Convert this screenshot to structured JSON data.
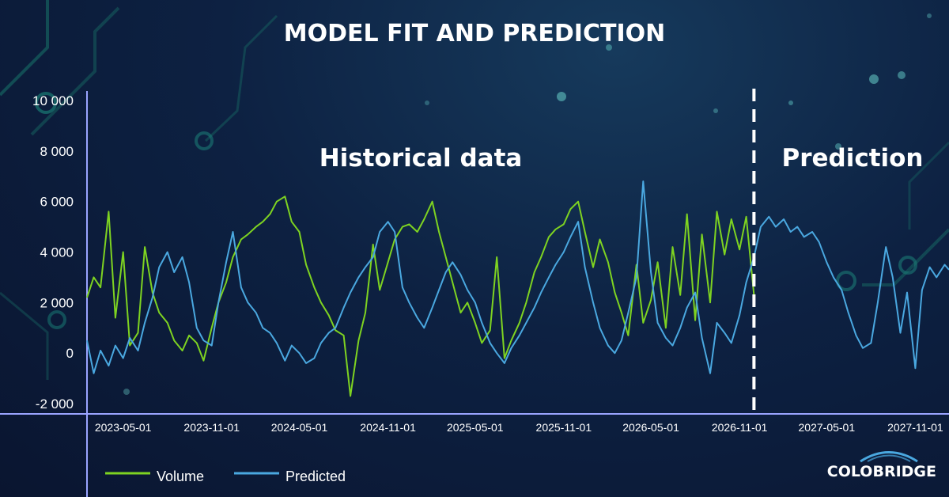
{
  "colors": {
    "background": "#0b1733",
    "axis": "#9aa4ff",
    "volume": "#7ed321",
    "predicted": "#4aa8e0",
    "divider": "#ffffff",
    "circuit": "#1a6b6b"
  },
  "logo": {
    "text": "COLOBRIDGE"
  },
  "chart_data": {
    "type": "line",
    "title": "MODEL FIT AND PREDICTION",
    "region_labels": {
      "historical": "Historical data",
      "prediction": "Prediction"
    },
    "prediction_start": "2026-12-01",
    "xlim": [
      "2023-02-15",
      "2028-01-10"
    ],
    "ylim": [
      -2000,
      10000
    ],
    "y_ticks": [
      10000,
      8000,
      6000,
      4000,
      2000,
      0,
      -2000
    ],
    "y_tick_labels": [
      "10 000",
      "8 000",
      "6 000",
      "4 000",
      "2 000",
      "0",
      "-2 000"
    ],
    "x_ticks": [
      "2023-05-01",
      "2023-11-01",
      "2024-05-01",
      "2024-11-01",
      "2025-05-01",
      "2025-11-01",
      "2026-05-01",
      "2026-11-01",
      "2027-05-01",
      "2027-11-01"
    ],
    "legend": [
      "Volume",
      "Predicted"
    ],
    "grid": false,
    "series": [
      {
        "name": "Volume",
        "points": [
          [
            "2023-02-15",
            2200
          ],
          [
            "2023-03-01",
            3000
          ],
          [
            "2023-03-15",
            2600
          ],
          [
            "2023-04-01",
            5600
          ],
          [
            "2023-04-15",
            1400
          ],
          [
            "2023-05-01",
            4000
          ],
          [
            "2023-05-15",
            300
          ],
          [
            "2023-06-01",
            800
          ],
          [
            "2023-06-15",
            4200
          ],
          [
            "2023-07-01",
            2400
          ],
          [
            "2023-07-15",
            1600
          ],
          [
            "2023-08-01",
            1200
          ],
          [
            "2023-08-15",
            500
          ],
          [
            "2023-09-01",
            100
          ],
          [
            "2023-09-15",
            700
          ],
          [
            "2023-10-01",
            400
          ],
          [
            "2023-10-15",
            -300
          ],
          [
            "2023-11-01",
            1000
          ],
          [
            "2023-11-15",
            2000
          ],
          [
            "2023-12-01",
            2800
          ],
          [
            "2023-12-15",
            3800
          ],
          [
            "2024-01-01",
            4500
          ],
          [
            "2024-01-15",
            4700
          ],
          [
            "2024-02-01",
            5000
          ],
          [
            "2024-02-15",
            5200
          ],
          [
            "2024-03-01",
            5500
          ],
          [
            "2024-03-15",
            6000
          ],
          [
            "2024-04-01",
            6200
          ],
          [
            "2024-04-15",
            5200
          ],
          [
            "2024-05-01",
            4800
          ],
          [
            "2024-05-15",
            3500
          ],
          [
            "2024-06-01",
            2600
          ],
          [
            "2024-06-15",
            2000
          ],
          [
            "2024-07-01",
            1500
          ],
          [
            "2024-07-15",
            900
          ],
          [
            "2024-08-01",
            700
          ],
          [
            "2024-08-15",
            -1700
          ],
          [
            "2024-09-01",
            500
          ],
          [
            "2024-09-15",
            1600
          ],
          [
            "2024-10-01",
            4300
          ],
          [
            "2024-10-15",
            2500
          ],
          [
            "2024-11-01",
            3600
          ],
          [
            "2024-11-15",
            4500
          ],
          [
            "2024-12-01",
            5000
          ],
          [
            "2024-12-15",
            5100
          ],
          [
            "2025-01-01",
            4800
          ],
          [
            "2025-01-15",
            5300
          ],
          [
            "2025-02-01",
            6000
          ],
          [
            "2025-02-15",
            4800
          ],
          [
            "2025-03-01",
            3800
          ],
          [
            "2025-03-15",
            2800
          ],
          [
            "2025-04-01",
            1600
          ],
          [
            "2025-04-15",
            2000
          ],
          [
            "2025-05-01",
            1200
          ],
          [
            "2025-05-15",
            400
          ],
          [
            "2025-06-01",
            900
          ],
          [
            "2025-06-15",
            3800
          ],
          [
            "2025-07-01",
            -200
          ],
          [
            "2025-07-15",
            500
          ],
          [
            "2025-08-01",
            1200
          ],
          [
            "2025-08-15",
            2000
          ],
          [
            "2025-09-01",
            3200
          ],
          [
            "2025-09-15",
            3800
          ],
          [
            "2025-10-01",
            4600
          ],
          [
            "2025-10-15",
            4900
          ],
          [
            "2025-11-01",
            5100
          ],
          [
            "2025-11-15",
            5700
          ],
          [
            "2025-12-01",
            6000
          ],
          [
            "2025-12-15",
            4800
          ],
          [
            "2026-01-01",
            3400
          ],
          [
            "2026-01-15",
            4500
          ],
          [
            "2026-02-01",
            3600
          ],
          [
            "2026-02-15",
            2400
          ],
          [
            "2026-03-01",
            1600
          ],
          [
            "2026-03-15",
            700
          ],
          [
            "2026-04-01",
            3500
          ],
          [
            "2026-04-15",
            1200
          ],
          [
            "2026-05-01",
            2100
          ],
          [
            "2026-05-15",
            3600
          ],
          [
            "2026-06-01",
            1000
          ],
          [
            "2026-06-15",
            4200
          ],
          [
            "2026-07-01",
            2300
          ],
          [
            "2026-07-15",
            5500
          ],
          [
            "2026-08-01",
            1300
          ],
          [
            "2026-08-15",
            4700
          ],
          [
            "2026-09-01",
            2000
          ],
          [
            "2026-09-15",
            5600
          ],
          [
            "2026-10-01",
            3900
          ],
          [
            "2026-10-15",
            5300
          ],
          [
            "2026-11-01",
            4100
          ],
          [
            "2026-11-15",
            5400
          ],
          [
            "2026-12-01",
            2300
          ]
        ]
      },
      {
        "name": "Predicted",
        "points": [
          [
            "2023-02-15",
            500
          ],
          [
            "2023-03-01",
            -800
          ],
          [
            "2023-03-15",
            100
          ],
          [
            "2023-04-01",
            -500
          ],
          [
            "2023-04-15",
            300
          ],
          [
            "2023-05-01",
            -200
          ],
          [
            "2023-05-15",
            600
          ],
          [
            "2023-06-01",
            100
          ],
          [
            "2023-06-15",
            1200
          ],
          [
            "2023-07-01",
            2200
          ],
          [
            "2023-07-15",
            3400
          ],
          [
            "2023-08-01",
            4000
          ],
          [
            "2023-08-15",
            3200
          ],
          [
            "2023-09-01",
            3800
          ],
          [
            "2023-09-15",
            2800
          ],
          [
            "2023-10-01",
            1000
          ],
          [
            "2023-10-15",
            500
          ],
          [
            "2023-11-01",
            300
          ],
          [
            "2023-11-15",
            2000
          ],
          [
            "2023-12-01",
            3600
          ],
          [
            "2023-12-15",
            4800
          ],
          [
            "2024-01-01",
            2600
          ],
          [
            "2024-01-15",
            2000
          ],
          [
            "2024-02-01",
            1600
          ],
          [
            "2024-02-15",
            1000
          ],
          [
            "2024-03-01",
            800
          ],
          [
            "2024-03-15",
            400
          ],
          [
            "2024-04-01",
            -300
          ],
          [
            "2024-04-15",
            300
          ],
          [
            "2024-05-01",
            0
          ],
          [
            "2024-05-15",
            -400
          ],
          [
            "2024-06-01",
            -200
          ],
          [
            "2024-06-15",
            400
          ],
          [
            "2024-07-01",
            800
          ],
          [
            "2024-07-15",
            1000
          ],
          [
            "2024-08-01",
            1800
          ],
          [
            "2024-08-15",
            2400
          ],
          [
            "2024-09-01",
            3000
          ],
          [
            "2024-09-15",
            3400
          ],
          [
            "2024-10-01",
            3800
          ],
          [
            "2024-10-15",
            4800
          ],
          [
            "2024-11-01",
            5200
          ],
          [
            "2024-11-15",
            4800
          ],
          [
            "2024-12-01",
            2600
          ],
          [
            "2024-12-15",
            2000
          ],
          [
            "2025-01-01",
            1400
          ],
          [
            "2025-01-15",
            1000
          ],
          [
            "2025-02-01",
            1800
          ],
          [
            "2025-02-15",
            2500
          ],
          [
            "2025-03-01",
            3200
          ],
          [
            "2025-03-15",
            3600
          ],
          [
            "2025-04-01",
            3100
          ],
          [
            "2025-04-15",
            2500
          ],
          [
            "2025-05-01",
            2000
          ],
          [
            "2025-05-15",
            1200
          ],
          [
            "2025-06-01",
            400
          ],
          [
            "2025-06-15",
            0
          ],
          [
            "2025-07-01",
            -400
          ],
          [
            "2025-07-15",
            200
          ],
          [
            "2025-08-01",
            700
          ],
          [
            "2025-08-15",
            1200
          ],
          [
            "2025-09-01",
            1800
          ],
          [
            "2025-09-15",
            2400
          ],
          [
            "2025-10-01",
            3000
          ],
          [
            "2025-10-15",
            3500
          ],
          [
            "2025-11-01",
            4000
          ],
          [
            "2025-11-15",
            4600
          ],
          [
            "2025-12-01",
            5200
          ],
          [
            "2025-12-15",
            3400
          ],
          [
            "2026-01-01",
            2000
          ],
          [
            "2026-01-15",
            1000
          ],
          [
            "2026-02-01",
            300
          ],
          [
            "2026-02-15",
            0
          ],
          [
            "2026-03-01",
            500
          ],
          [
            "2026-03-15",
            1600
          ],
          [
            "2026-04-01",
            3000
          ],
          [
            "2026-04-15",
            6800
          ],
          [
            "2026-05-01",
            3200
          ],
          [
            "2026-05-15",
            1200
          ],
          [
            "2026-06-01",
            600
          ],
          [
            "2026-06-15",
            300
          ],
          [
            "2026-07-01",
            1000
          ],
          [
            "2026-07-15",
            1800
          ],
          [
            "2026-08-01",
            2400
          ],
          [
            "2026-08-15",
            600
          ],
          [
            "2026-09-01",
            -800
          ],
          [
            "2026-09-15",
            1200
          ],
          [
            "2026-10-01",
            800
          ],
          [
            "2026-10-15",
            400
          ],
          [
            "2026-11-01",
            1500
          ],
          [
            "2026-11-15",
            2800
          ],
          [
            "2026-12-01",
            3800
          ],
          [
            "2026-12-15",
            5000
          ],
          [
            "2027-01-01",
            5400
          ],
          [
            "2027-01-15",
            5000
          ],
          [
            "2027-02-01",
            5300
          ],
          [
            "2027-02-15",
            4800
          ],
          [
            "2027-03-01",
            5000
          ],
          [
            "2027-03-15",
            4600
          ],
          [
            "2027-04-01",
            4800
          ],
          [
            "2027-04-15",
            4400
          ],
          [
            "2027-05-01",
            3600
          ],
          [
            "2027-05-15",
            3000
          ],
          [
            "2027-06-01",
            2500
          ],
          [
            "2027-06-15",
            1600
          ],
          [
            "2027-07-01",
            700
          ],
          [
            "2027-07-15",
            200
          ],
          [
            "2027-08-01",
            400
          ],
          [
            "2027-08-15",
            2000
          ],
          [
            "2027-09-01",
            4200
          ],
          [
            "2027-09-15",
            3000
          ],
          [
            "2027-10-01",
            800
          ],
          [
            "2027-10-15",
            2400
          ],
          [
            "2027-11-01",
            -600
          ],
          [
            "2027-11-15",
            2500
          ],
          [
            "2027-12-01",
            3400
          ],
          [
            "2027-12-15",
            3000
          ],
          [
            "2028-01-01",
            3500
          ],
          [
            "2028-01-10",
            3300
          ]
        ]
      }
    ]
  }
}
